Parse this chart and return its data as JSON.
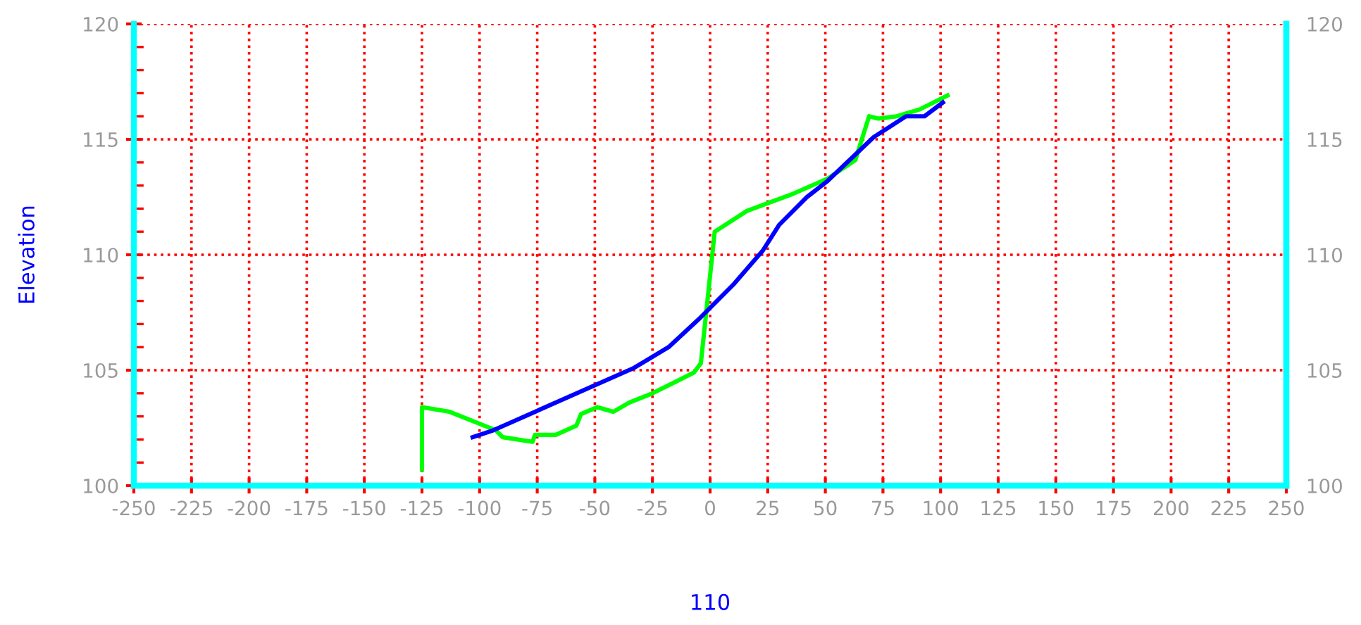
{
  "chart_data": {
    "type": "line",
    "xlabel": "110",
    "ylabel": "Elevation",
    "series": [
      {
        "color": "#00ff00",
        "x": [
          -125,
          -125,
          -113,
          -93,
          -90,
          -77,
          -76,
          -67,
          -58,
          -56,
          -49,
          -42,
          -35,
          -25,
          -15,
          -7,
          -4,
          2,
          16,
          35,
          51,
          63,
          69,
          73,
          81,
          91,
          103
        ],
        "values": [
          100.7,
          103.4,
          103.2,
          102.4,
          102.1,
          101.9,
          102.2,
          102.2,
          102.6,
          103.1,
          103.4,
          103.2,
          103.6,
          104.0,
          104.5,
          104.9,
          105.3,
          111.0,
          111.9,
          112.6,
          113.3,
          114.1,
          116.0,
          115.9,
          116.0,
          116.3,
          116.9
        ]
      },
      {
        "color": "#0000ff",
        "x": [
          -103,
          -94,
          -33,
          -18,
          -5,
          10,
          23,
          30,
          42,
          51,
          71,
          85,
          93,
          101
        ],
        "values": [
          102.1,
          102.4,
          105.1,
          106.0,
          107.2,
          108.7,
          110.2,
          111.3,
          112.5,
          113.2,
          115.1,
          116.0,
          116.0,
          116.6
        ]
      }
    ],
    "xlim": [
      -250,
      250
    ],
    "xticks": [
      -250,
      -225,
      -200,
      -175,
      -150,
      -125,
      -100,
      -75,
      -50,
      -25,
      0,
      25,
      50,
      75,
      100,
      125,
      150,
      175,
      200,
      225,
      250
    ],
    "ylim": [
      100,
      120
    ],
    "yticks": [
      100,
      105,
      110,
      115,
      120
    ],
    "y2lim": [
      100,
      120
    ],
    "y2ticks": [
      100,
      105,
      110,
      115,
      120
    ],
    "grid": true,
    "line_style": "solid",
    "marker": "none"
  }
}
